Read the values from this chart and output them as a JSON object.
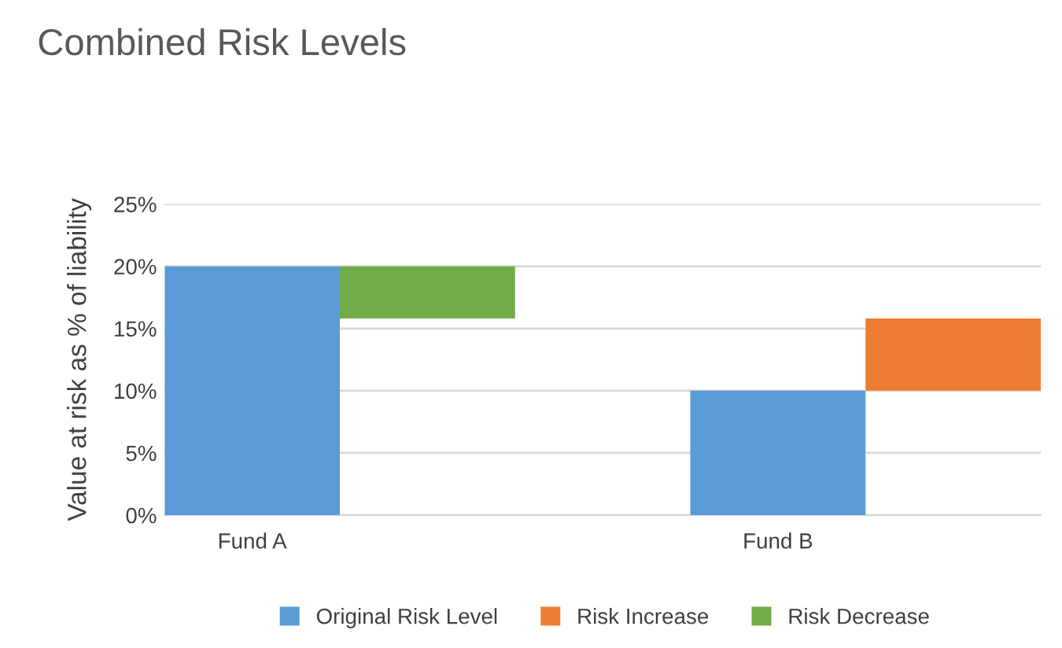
{
  "chart_data": {
    "type": "bar",
    "title": "Combined Risk Levels",
    "ylabel": "Value at risk as % of liability",
    "categories": [
      "Fund A",
      null,
      null,
      "Fund B",
      null
    ],
    "series": [
      {
        "name": "Original Risk Level",
        "color": "#5b9bd5",
        "values": [
          20,
          null,
          null,
          10,
          null
        ]
      },
      {
        "name": "Risk Increase",
        "color": "#ed7d31",
        "values": [
          null,
          null,
          null,
          null,
          5.8
        ],
        "base": [
          null,
          null,
          null,
          null,
          10
        ]
      },
      {
        "name": "Risk Decrease",
        "color": "#70ad47",
        "values": [
          null,
          4.2,
          null,
          null,
          null
        ],
        "base": [
          null,
          15.8,
          null,
          null,
          null
        ]
      }
    ],
    "ylim": [
      0,
      25
    ],
    "yticks": [
      {
        "value": 0,
        "label": "0%"
      },
      {
        "value": 5,
        "label": "5%"
      },
      {
        "value": 10,
        "label": "10%"
      },
      {
        "value": 15,
        "label": "15%"
      },
      {
        "value": 20,
        "label": "20%"
      },
      {
        "value": 25,
        "label": "25%"
      }
    ],
    "grid": "y",
    "legend": "bottom"
  }
}
